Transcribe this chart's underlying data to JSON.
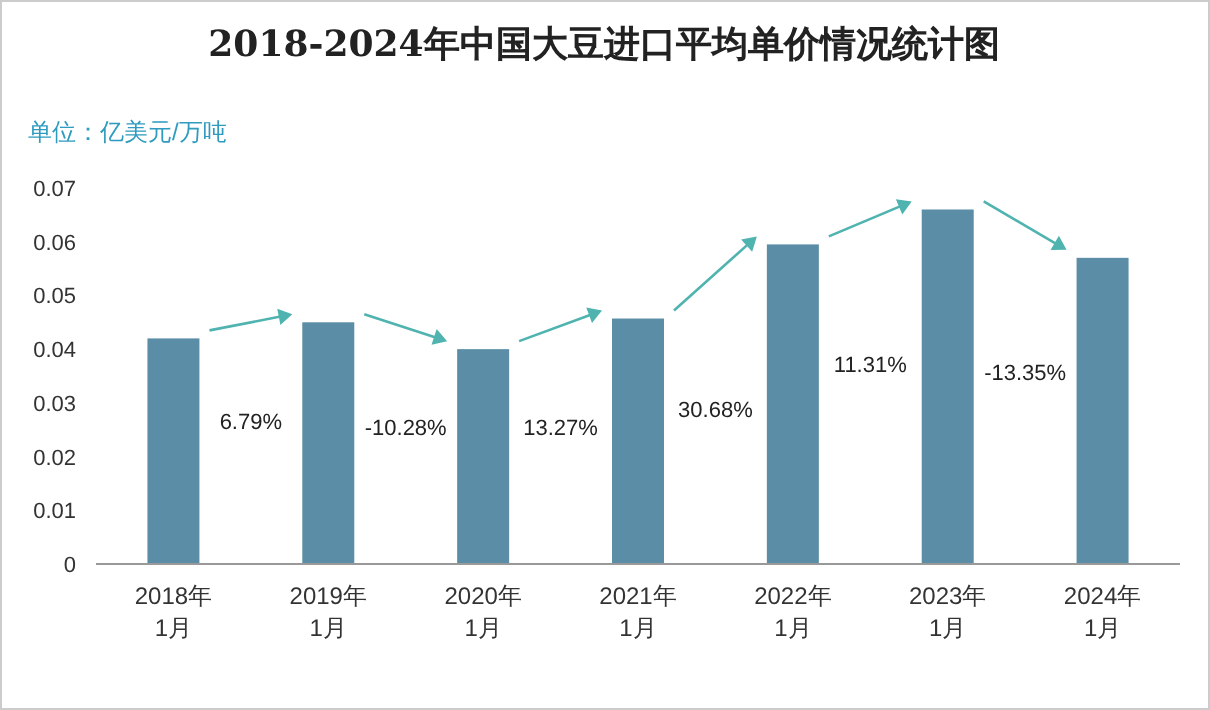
{
  "chart_data": {
    "type": "bar",
    "title": "2018-2024年中国大豆进口平均单价情况统计图",
    "ylabel": "单位：亿美元/万吨",
    "categories": [
      "2018年\n1月",
      "2019年\n1月",
      "2020年\n1月",
      "2021年\n1月",
      "2022年\n1月",
      "2023年\n1月",
      "2024年\n1月"
    ],
    "values": [
      0.042,
      0.045,
      0.04,
      0.0457,
      0.0595,
      0.066,
      0.057
    ],
    "color": "#5b8ea6",
    "ylim": [
      0,
      0.07
    ],
    "yticks": [
      0,
      0.01,
      0.02,
      0.03,
      0.04,
      0.05,
      0.06,
      0.07
    ],
    "grid": false,
    "annotations": [
      "6.79%",
      "-10.28%",
      "13.27%",
      "30.68%",
      "11.31%",
      "-13.35%"
    ]
  }
}
